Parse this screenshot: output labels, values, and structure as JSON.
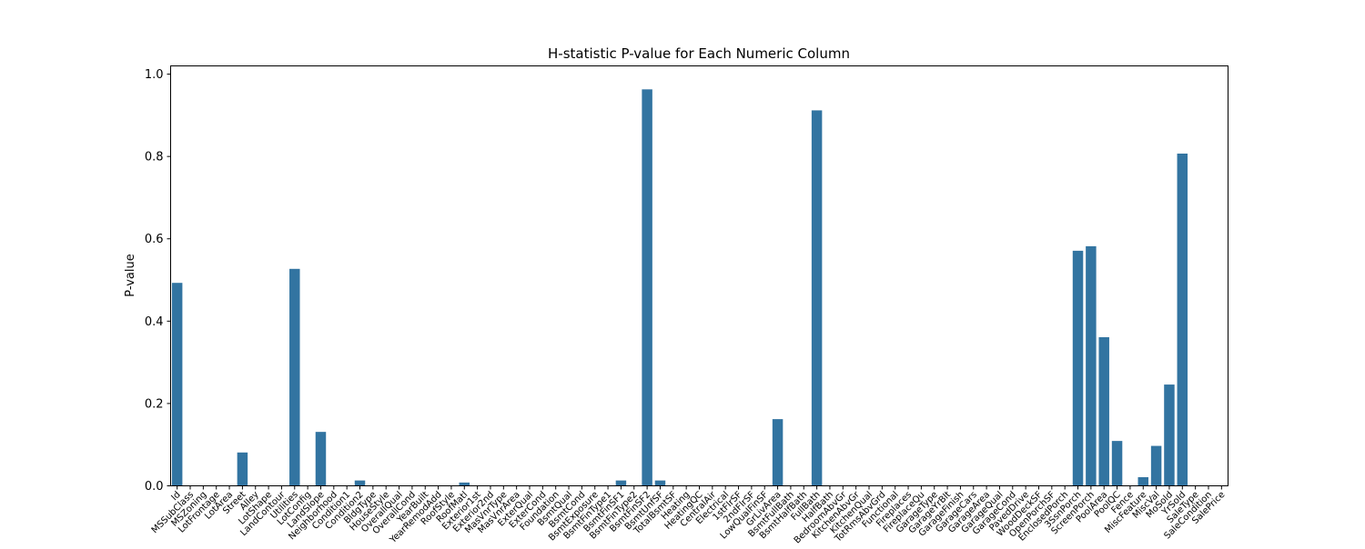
{
  "chart_data": {
    "type": "bar",
    "title": "H-statistic P-value for Each Numeric Column",
    "xlabel": "",
    "ylabel": "P-value",
    "ylim": [
      0,
      1.02
    ],
    "yticks": [
      "0.0",
      "0.2",
      "0.4",
      "0.6",
      "0.8",
      "1.0"
    ],
    "grid": false,
    "legend": "none",
    "bar_color": "#3274a1",
    "categories": [
      "Id",
      "MSSubClass",
      "MSZoning",
      "LotFrontage",
      "LotArea",
      "Street",
      "Alley",
      "LotShape",
      "LandContour",
      "Utilities",
      "LotConfig",
      "LandSlope",
      "Neighborhood",
      "Condition1",
      "Condition2",
      "BldgType",
      "HouseStyle",
      "OverallQual",
      "OverallCond",
      "YearBuilt",
      "YearRemodAdd",
      "RoofStyle",
      "RoofMatl",
      "Exterior1st",
      "Exterior2nd",
      "MasVnrType",
      "MasVnrArea",
      "ExterQual",
      "ExterCond",
      "Foundation",
      "BsmtQual",
      "BsmtCond",
      "BsmtExposure",
      "BsmtFinType1",
      "BsmtFinSF1",
      "BsmtFinType2",
      "BsmtFinSF2",
      "BsmtUnfSF",
      "TotalBsmtSF",
      "Heating",
      "HeatingQC",
      "CentralAir",
      "Electrical",
      "1stFlrSF",
      "2ndFlrSF",
      "LowQualFinSF",
      "GrLivArea",
      "BsmtFullBath",
      "BsmtHalfBath",
      "FullBath",
      "HalfBath",
      "BedroomAbvGr",
      "KitchenAbvGr",
      "KitchenQual",
      "TotRmsAbvGrd",
      "Functional",
      "Fireplaces",
      "FireplaceQu",
      "GarageType",
      "GarageYrBlt",
      "GarageFinish",
      "GarageCars",
      "GarageArea",
      "GarageQual",
      "GarageCond",
      "PavedDrive",
      "WoodDeckSF",
      "OpenPorchSF",
      "EnclosedPorch",
      "3SsnPorch",
      "ScreenPorch",
      "PoolArea",
      "PoolQC",
      "Fence",
      "MiscFeature",
      "MiscVal",
      "MoSold",
      "YrSold",
      "SaleType",
      "SaleCondition",
      "SalePrice"
    ],
    "values": [
      0.493,
      0,
      0,
      0,
      0,
      0.081,
      0,
      0,
      0,
      0.527,
      0,
      0.131,
      0,
      0,
      0.013,
      0,
      0,
      0,
      0,
      0,
      0,
      0,
      0.008,
      0,
      0,
      0,
      0,
      0,
      0,
      0,
      0,
      0,
      0,
      0,
      0.013,
      0,
      0.963,
      0.013,
      0,
      0,
      0,
      0,
      0,
      0,
      0,
      0,
      0.162,
      0,
      0,
      0.912,
      0,
      0,
      0,
      0,
      0,
      0,
      0,
      0,
      0,
      0,
      0,
      0,
      0,
      0,
      0,
      0,
      0,
      0,
      0,
      0.571,
      0.582,
      0.361,
      0.109,
      0,
      0.021,
      0.097,
      0.246,
      0.807,
      0,
      0,
      0
    ]
  }
}
